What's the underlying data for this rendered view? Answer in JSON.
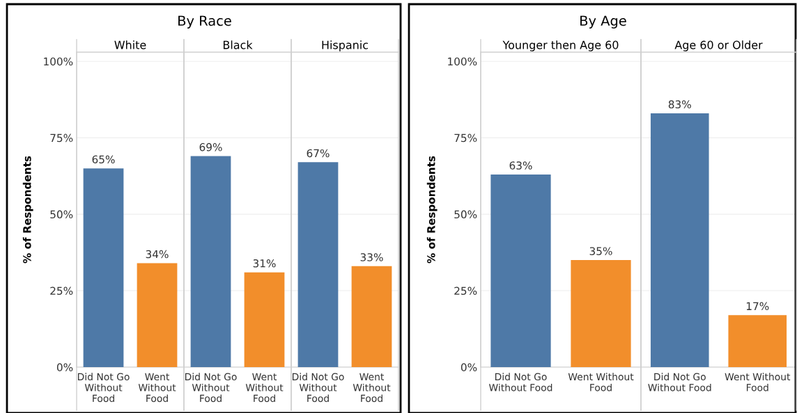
{
  "chart_data": [
    {
      "type": "other",
      "title": "By Race"
    },
    {
      "type": "bar",
      "title": "White",
      "ylabel": "% of Respondents",
      "categories": [
        "Did Not Go Without Food",
        "Went Without Food"
      ],
      "values": [
        65,
        34
      ],
      "colors": [
        "#4e79a7",
        "#f28e2b"
      ],
      "value_labels": [
        "65%",
        "34%"
      ],
      "ylim": [
        0,
        103
      ],
      "yticks": [
        {
          "value": 0,
          "label": "0%"
        },
        {
          "value": 25,
          "label": "25%"
        },
        {
          "value": 50,
          "label": "50%"
        },
        {
          "value": 75,
          "label": "75%"
        },
        {
          "value": 100,
          "label": "100%"
        }
      ],
      "grid": "y"
    },
    {
      "type": "bar",
      "title": "Black",
      "categories": [
        "Did Not Go Without Food",
        "Went Without Food"
      ],
      "values": [
        69,
        31
      ],
      "colors": [
        "#4e79a7",
        "#f28e2b"
      ],
      "value_labels": [
        "69%",
        "31%"
      ],
      "ylim": [
        0,
        103
      ],
      "yticks": [
        0,
        25,
        50,
        75,
        100
      ],
      "grid": "y",
      "tick_labels": "x"
    },
    {
      "type": "bar",
      "title": "Hispanic",
      "categories": [
        "Did Not Go Without Food",
        "Went Without Food"
      ],
      "values": [
        67,
        33
      ],
      "colors": [
        "#4e79a7",
        "#f28e2b"
      ],
      "value_labels": [
        "67%",
        "33%"
      ],
      "ylim": [
        0,
        103
      ],
      "yticks": [
        0,
        25,
        50,
        75,
        100
      ],
      "grid": "y",
      "tick_labels": "x"
    },
    {
      "type": "other",
      "title": "By Age"
    },
    {
      "type": "bar",
      "title": "Younger then Age 60",
      "ylabel": "% of Respondents",
      "categories": [
        "Did Not Go Without Food",
        "Went Without Food"
      ],
      "values": [
        63,
        35
      ],
      "colors": [
        "#4e79a7",
        "#f28e2b"
      ],
      "value_labels": [
        "63%",
        "35%"
      ],
      "ylim": [
        0,
        103
      ],
      "yticks": [
        {
          "value": 0,
          "label": "0%"
        },
        {
          "value": 25,
          "label": "25%"
        },
        {
          "value": 50,
          "label": "50%"
        },
        {
          "value": 75,
          "label": "75%"
        },
        {
          "value": 100,
          "label": "100%"
        }
      ],
      "grid": "y"
    },
    {
      "type": "bar",
      "title": "Age 60 or Older",
      "categories": [
        "Did Not Go Without Food",
        "Went Without Food"
      ],
      "values": [
        83,
        17
      ],
      "colors": [
        "#4e79a7",
        "#f28e2b"
      ],
      "value_labels": [
        "83%",
        "17%"
      ],
      "ylim": [
        0,
        103
      ],
      "yticks": [
        0,
        25,
        50,
        75,
        100
      ],
      "grid": "y",
      "tick_labels": "x"
    }
  ]
}
